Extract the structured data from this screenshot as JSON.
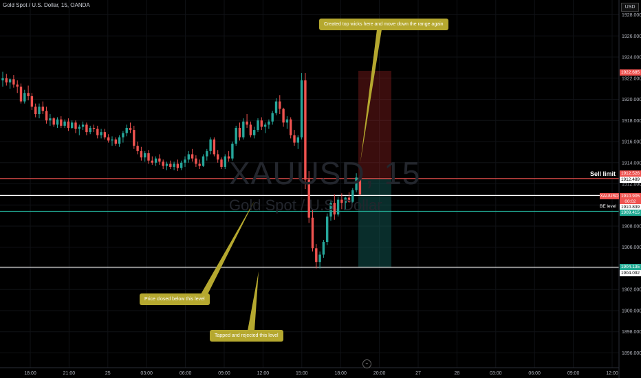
{
  "header": {
    "title": "Gold Spot / U.S. Dollar, 15, OANDA",
    "currency": "USD"
  },
  "watermark": {
    "symbol": "XAUUSD, 15",
    "name": "Gold Spot / U.S. Dollar"
  },
  "annotations": {
    "top_wicks": "Created top wicks here and move down the range again",
    "closed_below": "Price closed below this level",
    "tapped_rejected": "Tapped and rejected this level"
  },
  "side_labels": {
    "sell_limit": "Sell limit",
    "be_level": "BE level"
  },
  "price_labels": {
    "stop": "1922.685",
    "sell_limit": "1912.526",
    "sell_limit_2": "1912.489",
    "symbol": "XAUUSD",
    "last_price": "1910.905",
    "countdown": "00:02",
    "be_level": "1910.839",
    "be_level_2": "1909.415",
    "target": "1904.135",
    "target_2": "1904.092"
  },
  "colors": {
    "up": "#26a69a",
    "down": "#ef5350",
    "sell_line": "#ef5350",
    "be_line": "#22ab94",
    "note_bg": "#b5a82f",
    "background": "#000000"
  },
  "chart_data": {
    "type": "candlestick",
    "title": "Gold Spot / U.S. Dollar, 15, OANDA",
    "ylim": [
      1894.6,
      1929.4
    ],
    "y_ticks": [
      "1928.000",
      "1926.000",
      "1924.000",
      "1922.000",
      "1920.000",
      "1918.000",
      "1916.000",
      "1914.000",
      "1912.000",
      "1910.000",
      "1908.000",
      "1906.000",
      "1904.000",
      "1902.000",
      "1900.000",
      "1898.000",
      "1896.000"
    ],
    "x_ticks": [
      "18:00",
      "21:00",
      "25",
      "03:00",
      "06:00",
      "09:00",
      "12:00",
      "15:00",
      "18:00",
      "20:00",
      "27",
      "28",
      "03:00",
      "06:00",
      "09:00",
      "12:00"
    ],
    "levels": [
      {
        "name": "sell-limit",
        "value": 1912.5
      },
      {
        "name": "range-high",
        "value": 1910.9
      },
      {
        "name": "be-level",
        "value": 1909.4
      },
      {
        "name": "range-low",
        "value": 1904.1
      }
    ],
    "position": {
      "entry": 1912.5,
      "stop": 1922.7,
      "target": 1904.1
    },
    "ohlc": [
      [
        1921.8,
        1922.6,
        1921.2,
        1922.0
      ],
      [
        1922.0,
        1922.4,
        1921.3,
        1921.6
      ],
      [
        1921.6,
        1922.0,
        1921.0,
        1921.9
      ],
      [
        1921.9,
        1922.3,
        1921.1,
        1921.4
      ],
      [
        1921.4,
        1921.8,
        1920.6,
        1921.2
      ],
      [
        1921.2,
        1921.5,
        1919.6,
        1919.8
      ],
      [
        1919.8,
        1920.9,
        1919.6,
        1920.6
      ],
      [
        1920.6,
        1921.3,
        1919.9,
        1920.3
      ],
      [
        1920.3,
        1920.6,
        1919.0,
        1919.3
      ],
      [
        1919.3,
        1919.6,
        1918.3,
        1918.6
      ],
      [
        1918.6,
        1919.6,
        1918.2,
        1919.3
      ],
      [
        1919.3,
        1919.8,
        1918.6,
        1918.9
      ],
      [
        1918.9,
        1919.3,
        1917.7,
        1918.0
      ],
      [
        1918.0,
        1918.6,
        1917.5,
        1918.2
      ],
      [
        1918.2,
        1918.3,
        1917.4,
        1917.6
      ],
      [
        1917.6,
        1918.3,
        1917.3,
        1918.1
      ],
      [
        1918.1,
        1918.4,
        1917.3,
        1917.5
      ],
      [
        1917.5,
        1918.1,
        1917.3,
        1917.9
      ],
      [
        1917.9,
        1918.2,
        1917.0,
        1917.3
      ],
      [
        1917.3,
        1918.0,
        1917.2,
        1917.8
      ],
      [
        1917.8,
        1918.0,
        1916.8,
        1917.2
      ],
      [
        1917.2,
        1917.6,
        1916.6,
        1917.4
      ],
      [
        1917.4,
        1917.9,
        1917.1,
        1917.6
      ],
      [
        1917.6,
        1917.8,
        1916.6,
        1916.9
      ],
      [
        1916.9,
        1917.5,
        1916.7,
        1917.3
      ],
      [
        1917.3,
        1917.6,
        1916.9,
        1917.2
      ],
      [
        1917.2,
        1917.5,
        1916.3,
        1916.6
      ],
      [
        1916.6,
        1917.2,
        1916.3,
        1916.9
      ],
      [
        1916.9,
        1917.2,
        1916.2,
        1916.4
      ],
      [
        1916.4,
        1916.7,
        1915.9,
        1916.1
      ],
      [
        1916.1,
        1916.5,
        1915.6,
        1916.2
      ],
      [
        1916.2,
        1916.4,
        1915.6,
        1915.8
      ],
      [
        1915.8,
        1916.6,
        1915.5,
        1916.4
      ],
      [
        1916.4,
        1917.0,
        1915.9,
        1916.8
      ],
      [
        1916.8,
        1917.6,
        1916.5,
        1917.3
      ],
      [
        1917.3,
        1917.8,
        1916.8,
        1917.1
      ],
      [
        1917.1,
        1917.5,
        1915.3,
        1915.6
      ],
      [
        1915.6,
        1916.0,
        1914.8,
        1915.1
      ],
      [
        1915.1,
        1915.5,
        1914.2,
        1914.5
      ],
      [
        1914.5,
        1915.1,
        1914.1,
        1914.9
      ],
      [
        1914.9,
        1915.2,
        1913.9,
        1914.2
      ],
      [
        1914.2,
        1914.6,
        1913.8,
        1914.0
      ],
      [
        1914.0,
        1914.6,
        1913.7,
        1914.4
      ],
      [
        1914.4,
        1914.8,
        1913.8,
        1914.1
      ],
      [
        1914.1,
        1914.3,
        1913.4,
        1913.7
      ],
      [
        1913.7,
        1914.1,
        1913.3,
        1913.9
      ],
      [
        1913.9,
        1914.2,
        1913.4,
        1913.6
      ],
      [
        1913.6,
        1914.1,
        1913.3,
        1913.9
      ],
      [
        1913.9,
        1914.3,
        1913.2,
        1913.5
      ],
      [
        1913.5,
        1914.2,
        1913.3,
        1914.0
      ],
      [
        1914.0,
        1914.6,
        1913.6,
        1914.3
      ],
      [
        1914.3,
        1915.1,
        1914.0,
        1914.8
      ],
      [
        1914.8,
        1915.3,
        1914.1,
        1914.4
      ],
      [
        1914.4,
        1914.7,
        1913.6,
        1913.9
      ],
      [
        1913.9,
        1914.3,
        1913.4,
        1913.7
      ],
      [
        1913.7,
        1914.8,
        1913.6,
        1914.6
      ],
      [
        1914.6,
        1915.3,
        1914.2,
        1915.1
      ],
      [
        1915.1,
        1916.4,
        1914.8,
        1916.2
      ],
      [
        1916.2,
        1916.4,
        1914.6,
        1914.8
      ],
      [
        1914.8,
        1915.2,
        1914.0,
        1914.3
      ],
      [
        1914.3,
        1914.5,
        1913.4,
        1913.6
      ],
      [
        1913.6,
        1914.8,
        1913.4,
        1914.6
      ],
      [
        1914.6,
        1915.1,
        1914.1,
        1914.4
      ],
      [
        1914.4,
        1916.0,
        1914.2,
        1915.8
      ],
      [
        1915.8,
        1917.5,
        1915.6,
        1917.3
      ],
      [
        1917.3,
        1917.8,
        1916.1,
        1916.4
      ],
      [
        1916.4,
        1918.2,
        1916.2,
        1917.9
      ],
      [
        1917.9,
        1918.6,
        1917.3,
        1917.6
      ],
      [
        1917.6,
        1917.9,
        1916.4,
        1916.6
      ],
      [
        1916.6,
        1917.4,
        1916.3,
        1917.1
      ],
      [
        1917.1,
        1918.2,
        1916.9,
        1918.0
      ],
      [
        1918.0,
        1918.3,
        1917.1,
        1917.4
      ],
      [
        1917.4,
        1917.8,
        1916.8,
        1917.6
      ],
      [
        1917.6,
        1918.1,
        1917.2,
        1917.9
      ],
      [
        1917.9,
        1918.9,
        1917.6,
        1918.7
      ],
      [
        1918.7,
        1920.1,
        1918.5,
        1919.8
      ],
      [
        1919.8,
        1920.4,
        1918.6,
        1919.1
      ],
      [
        1919.1,
        1919.2,
        1917.4,
        1917.8
      ],
      [
        1917.8,
        1918.4,
        1917.2,
        1918.1
      ],
      [
        1918.1,
        1918.3,
        1916.3,
        1916.6
      ],
      [
        1916.6,
        1917.1,
        1915.6,
        1915.9
      ],
      [
        1915.9,
        1916.6,
        1915.3,
        1916.4
      ],
      [
        1916.4,
        1922.5,
        1916.2,
        1921.8
      ],
      [
        1921.8,
        1922.5,
        1911.5,
        1912.4
      ],
      [
        1912.4,
        1913.2,
        1908.3,
        1908.8
      ],
      [
        1908.8,
        1909.5,
        1905.6,
        1905.9
      ],
      [
        1905.9,
        1906.3,
        1904.0,
        1904.6
      ],
      [
        1904.6,
        1905.6,
        1904.0,
        1905.3
      ],
      [
        1905.3,
        1906.7,
        1905.0,
        1906.5
      ],
      [
        1906.5,
        1909.2,
        1906.2,
        1908.9
      ],
      [
        1908.9,
        1910.5,
        1908.5,
        1910.2
      ],
      [
        1910.2,
        1911.0,
        1908.6,
        1909.1
      ],
      [
        1909.1,
        1910.8,
        1908.9,
        1910.5
      ],
      [
        1910.5,
        1911.1,
        1909.6,
        1910.2
      ],
      [
        1910.2,
        1910.8,
        1909.5,
        1910.7
      ],
      [
        1910.7,
        1911.2,
        1910.2,
        1910.3
      ],
      [
        1910.3,
        1911.6,
        1910.2,
        1911.4
      ],
      [
        1911.4,
        1913.0,
        1911.2,
        1912.6
      ],
      [
        1912.6,
        1912.8,
        1910.9,
        1911.0
      ]
    ]
  }
}
